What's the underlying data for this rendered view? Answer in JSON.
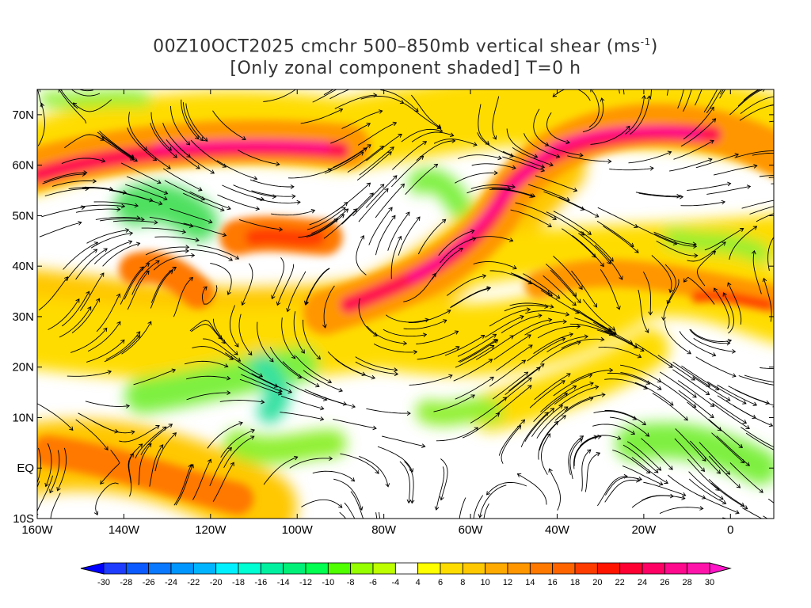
{
  "title": {
    "line1": "00Z10OCT2025 cmchr 500–850mb vertical shear (ms",
    "unit_exp": "-1",
    "line1_end": ")",
    "line2": "[Only zonal component shaded] T=0 h"
  },
  "map": {
    "lon_range": [
      -160,
      10
    ],
    "lat_range": [
      -10,
      75
    ],
    "lat_ticks": [
      {
        "value": 70,
        "label": "70N"
      },
      {
        "value": 60,
        "label": "60N"
      },
      {
        "value": 50,
        "label": "50N"
      },
      {
        "value": 40,
        "label": "40N"
      },
      {
        "value": 30,
        "label": "30N"
      },
      {
        "value": 20,
        "label": "20N"
      },
      {
        "value": 10,
        "label": "10N"
      },
      {
        "value": 0,
        "label": "EQ"
      },
      {
        "value": -10,
        "label": "10S"
      }
    ],
    "lon_ticks": [
      {
        "value": -160,
        "label": "160W"
      },
      {
        "value": -140,
        "label": "140W"
      },
      {
        "value": -120,
        "label": "120W"
      },
      {
        "value": -100,
        "label": "100W"
      },
      {
        "value": -80,
        "label": "80W"
      },
      {
        "value": -60,
        "label": "60W"
      },
      {
        "value": -40,
        "label": "40W"
      },
      {
        "value": -20,
        "label": "20W"
      },
      {
        "value": 0,
        "label": "0"
      }
    ]
  },
  "colorbar": {
    "labels": [
      "-30",
      "-28",
      "-26",
      "-24",
      "-22",
      "-20",
      "-18",
      "-16",
      "-14",
      "-12",
      "-10",
      "-8",
      "-6",
      "-4",
      "4",
      "6",
      "8",
      "10",
      "12",
      "14",
      "16",
      "18",
      "20",
      "22",
      "24",
      "26",
      "28",
      "30"
    ],
    "colors": [
      "#1e3cff",
      "#0a5aff",
      "#0a78ff",
      "#0096ff",
      "#00b4ff",
      "#00f0ff",
      "#00ffd2",
      "#00f0a0",
      "#00f078",
      "#00ff50",
      "#50ff00",
      "#96ff00",
      "#beff00",
      "#ffffff",
      "#ffff00",
      "#ffdc00",
      "#ffc800",
      "#ffaa00",
      "#ff9600",
      "#ff7800",
      "#ff6400",
      "#ff3c00",
      "#ff1400",
      "#ff0032",
      "#ff0064",
      "#ff0a8c",
      "#ff14aa"
    ],
    "low_color": "#0000ff",
    "high_color": "#ff14c8"
  }
}
